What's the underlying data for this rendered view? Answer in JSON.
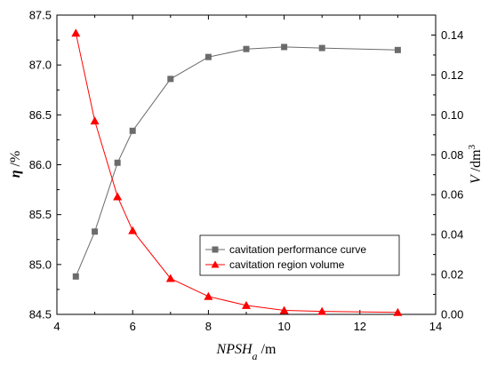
{
  "colors": {
    "series1": "#6b6b6b",
    "series2": "#ff0000",
    "axis": "#000000"
  },
  "chart_data": {
    "type": "line",
    "x": [
      4.5,
      5,
      5.6,
      6,
      7,
      8,
      9,
      10,
      11,
      13
    ],
    "xlabel": {
      "main": "NPSH",
      "sub": "a",
      "unit": " /m"
    },
    "xlim": [
      4,
      14
    ],
    "xticks": [
      4,
      6,
      8,
      10,
      12,
      14
    ],
    "y_left": {
      "label": {
        "main": "η",
        "unit": " /%"
      },
      "lim": [
        84.5,
        87.5
      ],
      "ticks": [
        84.5,
        85.0,
        85.5,
        86.0,
        86.5,
        87.0,
        87.5
      ],
      "tick_labels": [
        "84.5",
        "85.0",
        "85.5",
        "86.0",
        "86.5",
        "87.0",
        "87.5"
      ]
    },
    "y_right": {
      "label": {
        "main": "V",
        "unit": " /dm",
        "sup": "3"
      },
      "lim": [
        0,
        0.15
      ],
      "ticks": [
        0.0,
        0.02,
        0.04,
        0.06,
        0.08,
        0.1,
        0.12,
        0.14
      ],
      "tick_labels": [
        "0.00",
        "0.02",
        "0.04",
        "0.06",
        "0.08",
        "0.10",
        "0.12",
        "0.14"
      ]
    },
    "series": [
      {
        "name": "cavitation performance curve",
        "axis": "left",
        "marker": "square",
        "color": "#6b6b6b",
        "values": [
          84.88,
          85.33,
          86.02,
          86.34,
          86.86,
          87.08,
          87.16,
          87.18,
          87.17,
          87.15
        ]
      },
      {
        "name": "cavitation region volume",
        "axis": "right",
        "marker": "triangle",
        "color": "#ff0000",
        "values": [
          0.141,
          0.097,
          0.059,
          0.042,
          0.018,
          0.009,
          0.0045,
          0.002,
          0.0015,
          0.001
        ]
      }
    ],
    "legend_position": "lower-right",
    "grid": false
  }
}
